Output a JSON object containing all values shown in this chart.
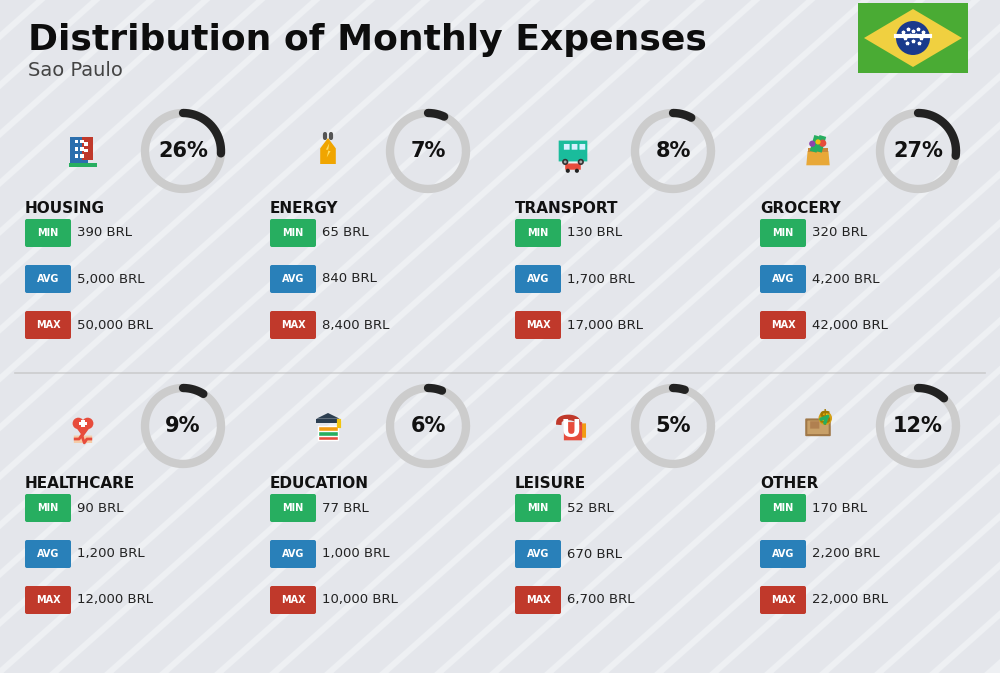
{
  "title": "Distribution of Monthly Expenses",
  "subtitle": "Sao Paulo",
  "background_color": "#eef0f3",
  "stripe_color": "#d8dce3",
  "categories": [
    {
      "name": "HOUSING",
      "pct": 26,
      "min": "390 BRL",
      "avg": "5,000 BRL",
      "max": "50,000 BRL",
      "row": 0,
      "col": 0
    },
    {
      "name": "ENERGY",
      "pct": 7,
      "min": "65 BRL",
      "avg": "840 BRL",
      "max": "8,400 BRL",
      "row": 0,
      "col": 1
    },
    {
      "name": "TRANSPORT",
      "pct": 8,
      "min": "130 BRL",
      "avg": "1,700 BRL",
      "max": "17,000 BRL",
      "row": 0,
      "col": 2
    },
    {
      "name": "GROCERY",
      "pct": 27,
      "min": "320 BRL",
      "avg": "4,200 BRL",
      "max": "42,000 BRL",
      "row": 0,
      "col": 3
    },
    {
      "name": "HEALTHCARE",
      "pct": 9,
      "min": "90 BRL",
      "avg": "1,200 BRL",
      "max": "12,000 BRL",
      "row": 1,
      "col": 0
    },
    {
      "name": "EDUCATION",
      "pct": 6,
      "min": "77 BRL",
      "avg": "1,000 BRL",
      "max": "10,000 BRL",
      "row": 1,
      "col": 1
    },
    {
      "name": "LEISURE",
      "pct": 5,
      "min": "52 BRL",
      "avg": "670 BRL",
      "max": "6,700 BRL",
      "row": 1,
      "col": 2
    },
    {
      "name": "OTHER",
      "pct": 12,
      "min": "170 BRL",
      "avg": "2,200 BRL",
      "max": "22,000 BRL",
      "row": 1,
      "col": 3
    }
  ],
  "min_color": "#27ae60",
  "avg_color": "#2980b9",
  "max_color": "#c0392b",
  "arc_fg_color": "#222222",
  "arc_bg_color": "#cccccc",
  "divider_color": "#bbbbbb",
  "title_fontsize": 26,
  "subtitle_fontsize": 14,
  "category_fontsize": 11,
  "pct_fontsize": 15,
  "value_fontsize": 9.5,
  "badge_label_fontsize": 7,
  "fig_w": 10.0,
  "fig_h": 6.73
}
